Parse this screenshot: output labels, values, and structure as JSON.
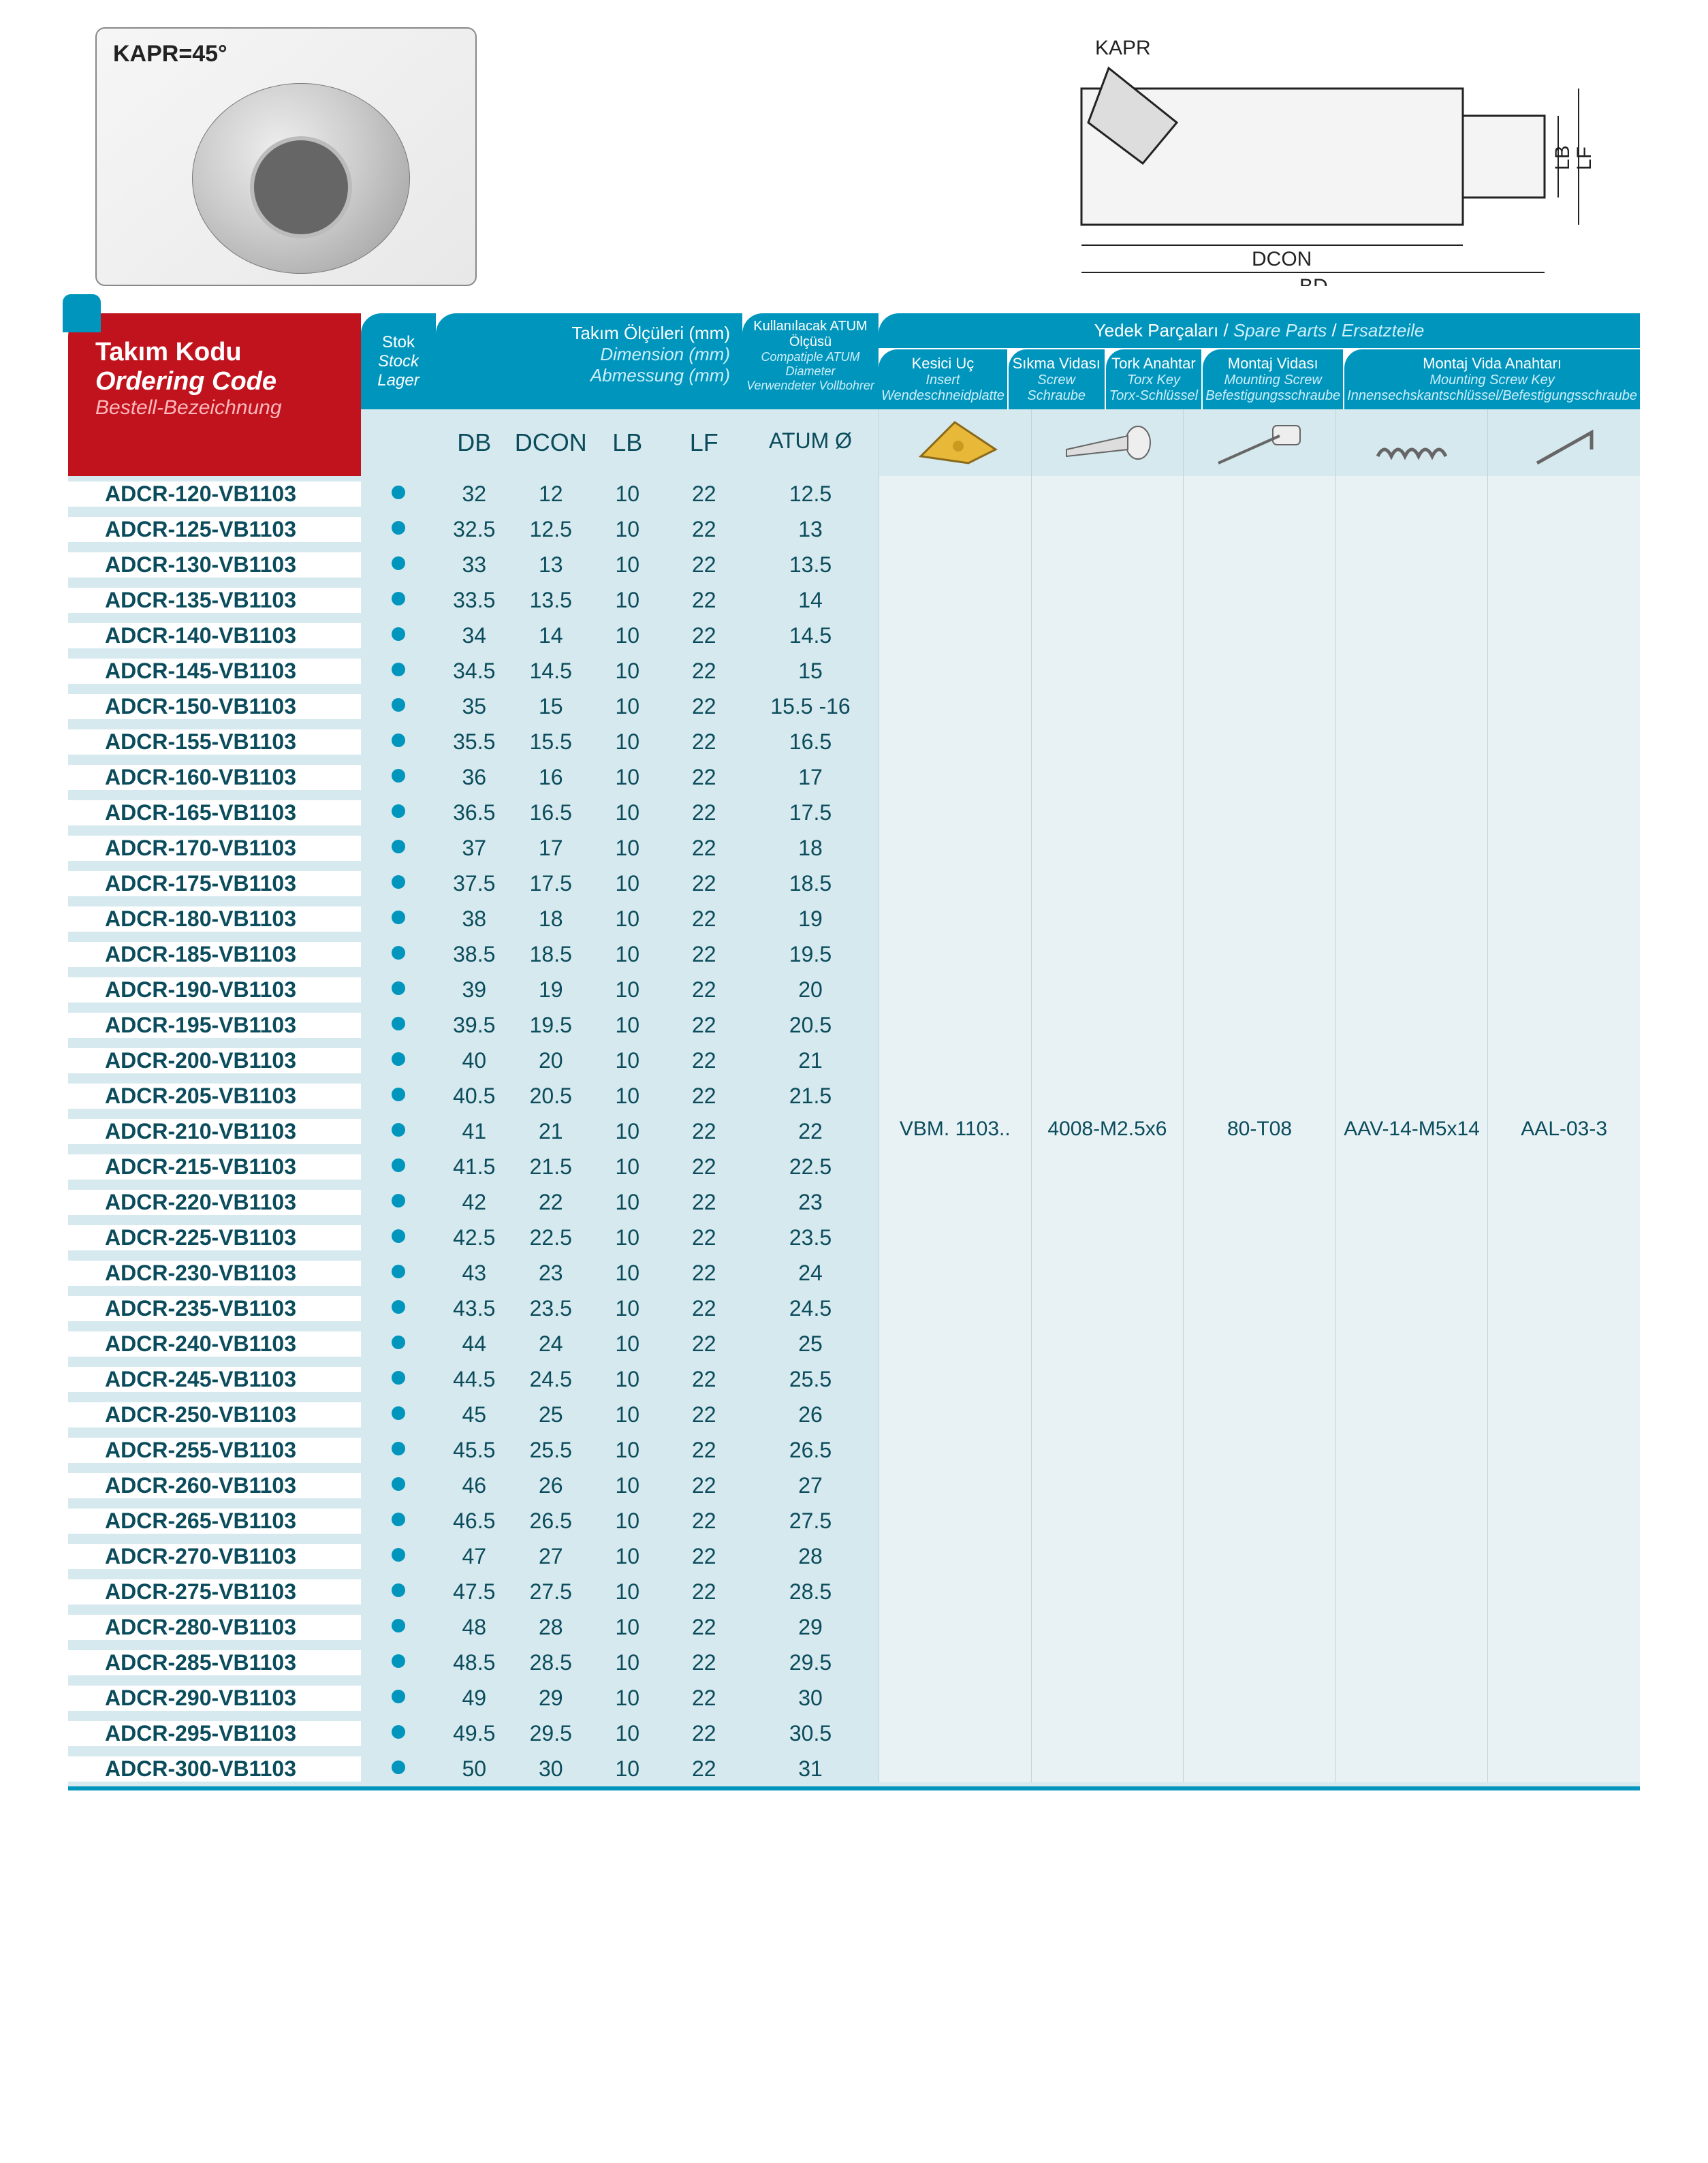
{
  "kapr_label": "KAPR=45°",
  "drawing_labels": {
    "kapr": "KAPR",
    "lf": "LF",
    "lb": "LB",
    "dcon": "DCON",
    "bd": "BD"
  },
  "header": {
    "code": {
      "l1": "Takım Kodu",
      "l2": "Ordering Code",
      "l3": "Bestell-Bezeichnung"
    },
    "stok": {
      "l1": "Stok",
      "l2": "Stock",
      "l3": "Lager"
    },
    "dim": {
      "l1": "Takım Ölçüleri (mm)",
      "l2": "Dimension (mm)",
      "l3": "Abmessung (mm)"
    },
    "atum": {
      "l1": "Kullanılacak ATUM Ölçüsü",
      "l2": "Compatiple ATUM Diameter",
      "l3": "Verwendeter Vollbohrer"
    },
    "spare_title": {
      "l1": "Yedek Parçaları",
      "l2": "Spare Parts",
      "l3": "Ersatzteile"
    },
    "spare_cols": [
      {
        "l1": "Kesici Uç",
        "l2": "Insert",
        "l3": "Wendeschneidplatte"
      },
      {
        "l1": "Sıkma Vidası",
        "l2": "Screw",
        "l3": "Schraube"
      },
      {
        "l1": "Tork Anahtar",
        "l2": "Torx Key",
        "l3": "Torx-Schlüssel"
      },
      {
        "l1": "Montaj Vidası",
        "l2": "Mounting Screw",
        "l3": "Befestigungsschraube"
      },
      {
        "l1": "Montaj Vida Anahtarı",
        "l2": "Mounting Screw Key",
        "l3": "Innensechskantschlüssel/Befestigungsschraube"
      }
    ],
    "dim_cols": [
      "DB",
      "DCON",
      "LB",
      "LF"
    ],
    "atum_col": "ATUM Ø"
  },
  "spare_values": [
    "VBM. 1103..",
    "4008-M2.5x6",
    "80-T08",
    "AAV-14-M5x14",
    "AAL-03-3"
  ],
  "rows": [
    {
      "code": "ADCR-120-VB1103",
      "db": "32",
      "dcon": "12",
      "lb": "10",
      "lf": "22",
      "atum": "12.5"
    },
    {
      "code": "ADCR-125-VB1103",
      "db": "32.5",
      "dcon": "12.5",
      "lb": "10",
      "lf": "22",
      "atum": "13"
    },
    {
      "code": "ADCR-130-VB1103",
      "db": "33",
      "dcon": "13",
      "lb": "10",
      "lf": "22",
      "atum": "13.5"
    },
    {
      "code": "ADCR-135-VB1103",
      "db": "33.5",
      "dcon": "13.5",
      "lb": "10",
      "lf": "22",
      "atum": "14"
    },
    {
      "code": "ADCR-140-VB1103",
      "db": "34",
      "dcon": "14",
      "lb": "10",
      "lf": "22",
      "atum": "14.5"
    },
    {
      "code": "ADCR-145-VB1103",
      "db": "34.5",
      "dcon": "14.5",
      "lb": "10",
      "lf": "22",
      "atum": "15"
    },
    {
      "code": "ADCR-150-VB1103",
      "db": "35",
      "dcon": "15",
      "lb": "10",
      "lf": "22",
      "atum": "15.5 -16"
    },
    {
      "code": "ADCR-155-VB1103",
      "db": "35.5",
      "dcon": "15.5",
      "lb": "10",
      "lf": "22",
      "atum": "16.5"
    },
    {
      "code": "ADCR-160-VB1103",
      "db": "36",
      "dcon": "16",
      "lb": "10",
      "lf": "22",
      "atum": "17"
    },
    {
      "code": "ADCR-165-VB1103",
      "db": "36.5",
      "dcon": "16.5",
      "lb": "10",
      "lf": "22",
      "atum": "17.5"
    },
    {
      "code": "ADCR-170-VB1103",
      "db": "37",
      "dcon": "17",
      "lb": "10",
      "lf": "22",
      "atum": "18"
    },
    {
      "code": "ADCR-175-VB1103",
      "db": "37.5",
      "dcon": "17.5",
      "lb": "10",
      "lf": "22",
      "atum": "18.5"
    },
    {
      "code": "ADCR-180-VB1103",
      "db": "38",
      "dcon": "18",
      "lb": "10",
      "lf": "22",
      "atum": "19"
    },
    {
      "code": "ADCR-185-VB1103",
      "db": "38.5",
      "dcon": "18.5",
      "lb": "10",
      "lf": "22",
      "atum": "19.5"
    },
    {
      "code": "ADCR-190-VB1103",
      "db": "39",
      "dcon": "19",
      "lb": "10",
      "lf": "22",
      "atum": "20"
    },
    {
      "code": "ADCR-195-VB1103",
      "db": "39.5",
      "dcon": "19.5",
      "lb": "10",
      "lf": "22",
      "atum": "20.5"
    },
    {
      "code": "ADCR-200-VB1103",
      "db": "40",
      "dcon": "20",
      "lb": "10",
      "lf": "22",
      "atum": "21"
    },
    {
      "code": "ADCR-205-VB1103",
      "db": "40.5",
      "dcon": "20.5",
      "lb": "10",
      "lf": "22",
      "atum": "21.5"
    },
    {
      "code": "ADCR-210-VB1103",
      "db": "41",
      "dcon": "21",
      "lb": "10",
      "lf": "22",
      "atum": "22"
    },
    {
      "code": "ADCR-215-VB1103",
      "db": "41.5",
      "dcon": "21.5",
      "lb": "10",
      "lf": "22",
      "atum": "22.5"
    },
    {
      "code": "ADCR-220-VB1103",
      "db": "42",
      "dcon": "22",
      "lb": "10",
      "lf": "22",
      "atum": "23"
    },
    {
      "code": "ADCR-225-VB1103",
      "db": "42.5",
      "dcon": "22.5",
      "lb": "10",
      "lf": "22",
      "atum": "23.5"
    },
    {
      "code": "ADCR-230-VB1103",
      "db": "43",
      "dcon": "23",
      "lb": "10",
      "lf": "22",
      "atum": "24"
    },
    {
      "code": "ADCR-235-VB1103",
      "db": "43.5",
      "dcon": "23.5",
      "lb": "10",
      "lf": "22",
      "atum": "24.5"
    },
    {
      "code": "ADCR-240-VB1103",
      "db": "44",
      "dcon": "24",
      "lb": "10",
      "lf": "22",
      "atum": "25"
    },
    {
      "code": "ADCR-245-VB1103",
      "db": "44.5",
      "dcon": "24.5",
      "lb": "10",
      "lf": "22",
      "atum": "25.5"
    },
    {
      "code": "ADCR-250-VB1103",
      "db": "45",
      "dcon": "25",
      "lb": "10",
      "lf": "22",
      "atum": "26"
    },
    {
      "code": "ADCR-255-VB1103",
      "db": "45.5",
      "dcon": "25.5",
      "lb": "10",
      "lf": "22",
      "atum": "26.5"
    },
    {
      "code": "ADCR-260-VB1103",
      "db": "46",
      "dcon": "26",
      "lb": "10",
      "lf": "22",
      "atum": "27"
    },
    {
      "code": "ADCR-265-VB1103",
      "db": "46.5",
      "dcon": "26.5",
      "lb": "10",
      "lf": "22",
      "atum": "27.5"
    },
    {
      "code": "ADCR-270-VB1103",
      "db": "47",
      "dcon": "27",
      "lb": "10",
      "lf": "22",
      "atum": "28"
    },
    {
      "code": "ADCR-275-VB1103",
      "db": "47.5",
      "dcon": "27.5",
      "lb": "10",
      "lf": "22",
      "atum": "28.5"
    },
    {
      "code": "ADCR-280-VB1103",
      "db": "48",
      "dcon": "28",
      "lb": "10",
      "lf": "22",
      "atum": "29"
    },
    {
      "code": "ADCR-285-VB1103",
      "db": "48.5",
      "dcon": "28.5",
      "lb": "10",
      "lf": "22",
      "atum": "29.5"
    },
    {
      "code": "ADCR-290-VB1103",
      "db": "49",
      "dcon": "29",
      "lb": "10",
      "lf": "22",
      "atum": "30"
    },
    {
      "code": "ADCR-295-VB1103",
      "db": "49.5",
      "dcon": "29.5",
      "lb": "10",
      "lf": "22",
      "atum": "30.5"
    },
    {
      "code": "ADCR-300-VB1103",
      "db": "50",
      "dcon": "30",
      "lb": "10",
      "lf": "22",
      "atum": "31"
    }
  ],
  "colors": {
    "header_blue": "#0095bd",
    "header_red": "#c1131d",
    "body_blue": "#d6e9ee",
    "text_dark": "#0b4c5c",
    "dot": "#0095bd"
  }
}
